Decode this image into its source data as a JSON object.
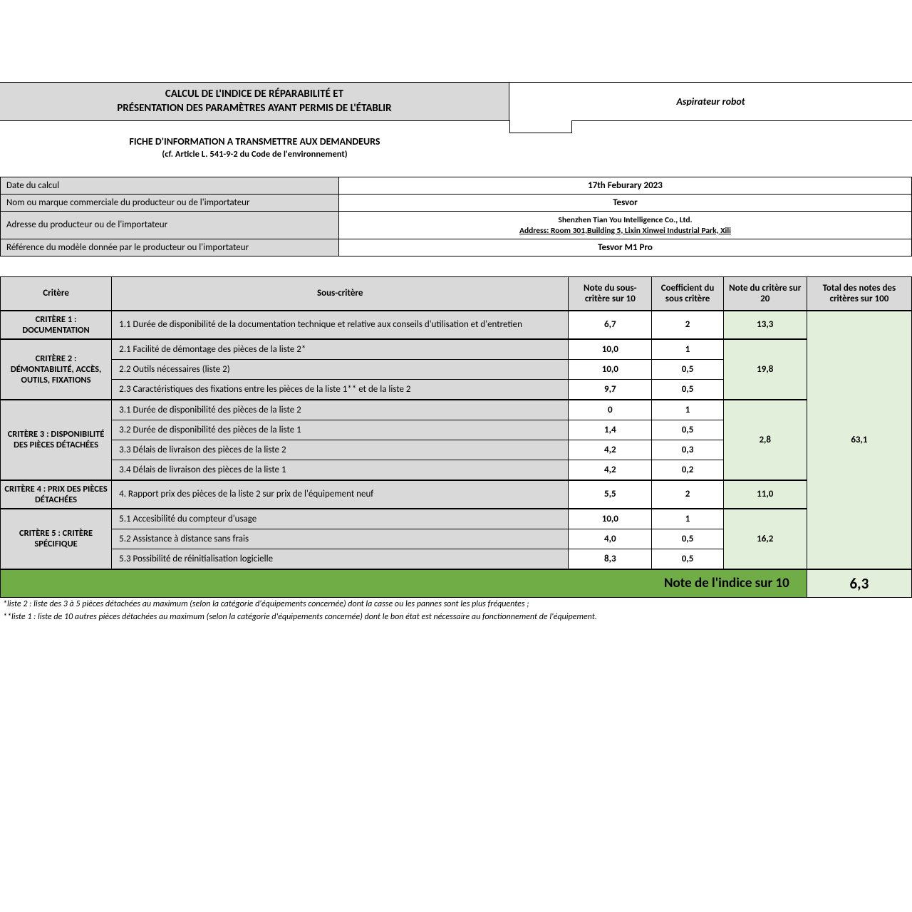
{
  "header": {
    "title_line1": "CALCUL DE L'INDICE DE RÉPARABILITÉ ET",
    "title_line2": "PRÉSENTATION DES PARAMÈTRES AYANT PERMIS DE L'ÉTABLIR",
    "product_type": "Aspirateur robot",
    "subtitle": "FICHE D'INFORMATION A TRANSMETTRE AUX DEMANDEURS",
    "subtitle2": "(cf. Article L. 541-9-2 du Code de l'environnement)"
  },
  "info": {
    "rows": [
      {
        "label": "Date du calcul",
        "value": "17th Feburary 2023"
      },
      {
        "label": "Nom ou marque commerciale du producteur ou de l'importateur",
        "value": "Tesvor"
      },
      {
        "label": "Adresse du producteur ou de l'importateur",
        "value": "Shenzhen Tian You Intelligence Co., Ltd.",
        "value2": "Address: Room 301,Building 5, Lixin Xinwei Industrial Park, Xili"
      },
      {
        "label": "Référence du modèle donnée par le producteur ou l'importateur",
        "value": "Tesvor M1 Pro"
      }
    ]
  },
  "columns": {
    "critere": "Critère",
    "sous": "Sous-critère",
    "note10": "Note du sous-critère sur 10",
    "coef": "Coefficient du sous critère",
    "note20": "Note du critère sur 20",
    "total100": "Total des notes des critères sur 100"
  },
  "criteria": [
    {
      "name": "CRITÈRE 1 : DOCUMENTATION",
      "note20": "13,3",
      "subs": [
        {
          "label": "1.1 Durée de disponibilité de la documentation technique et relative aux conseils d'utilisation et d'entretien",
          "note": "6,7",
          "coef": "2"
        }
      ]
    },
    {
      "name": "CRITÈRE 2 : DÉMONTABILITÉ, ACCÈS, OUTILS, FIXATIONS",
      "note20": "19,8",
      "subs": [
        {
          "label": "2.1 Facilité de démontage des pièces de la liste 2*",
          "note": "10,0",
          "coef": "1"
        },
        {
          "label": "2.2 Outils nécessaires (liste 2)",
          "note": "10,0",
          "coef": "0,5"
        },
        {
          "label": "2.3 Caractéristiques des fixations entre les pièces de la liste 1** et de la liste 2",
          "note": "9,7",
          "coef": "0,5"
        }
      ]
    },
    {
      "name": "CRITÈRE 3 : DISPONIBILITÉ DES PIÈCES DÉTACHÉES",
      "note20": "2,8",
      "subs": [
        {
          "label": "3.1 Durée de disponibilité des pièces de la liste 2",
          "note": "0",
          "coef": "1"
        },
        {
          "label": "3.2 Durée de disponibilité des pièces de la liste 1",
          "note": "1,4",
          "coef": "0,5"
        },
        {
          "label": "3.3 Délais de livraison des pièces de la liste 2",
          "note": "4,2",
          "coef": "0,3"
        },
        {
          "label": "3.4 Délais de livraison des pièces de la liste 1",
          "note": "4,2",
          "coef": "0,2"
        }
      ]
    },
    {
      "name": "CRITÈRE 4 : PRIX DES PIÈCES DÉTACHÉES",
      "note20": "11,0",
      "subs": [
        {
          "label": "4. Rapport prix des pièces de la liste 2 sur prix de l'équipement neuf",
          "note": "5,5",
          "coef": "2"
        }
      ]
    },
    {
      "name": "CRITÈRE 5 : CRITÈRE SPÉCIFIQUE",
      "note20": "16,2",
      "subs": [
        {
          "label": "5.1 Accesibilité du compteur d'usage",
          "note": "10,0",
          "coef": "1"
        },
        {
          "label": "5.2 Assistance à distance sans frais",
          "note": "4,0",
          "coef": "0,5"
        },
        {
          "label": "5.3 Possibilité de réinitialisation logicielle",
          "note": "8,3",
          "coef": "0,5"
        }
      ]
    }
  ],
  "total100": "63,1",
  "final": {
    "label": "Note de l'indice sur 10",
    "value": "6,3"
  },
  "footnotes": {
    "f1": "*liste 2 : liste des 3 à 5 pièces détachées au maximum (selon la catégorie d'équipements concernée) dont la casse ou les pannes sont les plus fréquentes ;",
    "f2": "**liste 1 : liste de 10 autres pièces détachées au maximum (selon la catégorie d'équipements concernée) dont le bon état est nécessaire au fonctionnement de l'équipement."
  },
  "colors": {
    "grey": "#d9d9d9",
    "green_light": "#e2efda",
    "green_dark": "#70ad47"
  }
}
